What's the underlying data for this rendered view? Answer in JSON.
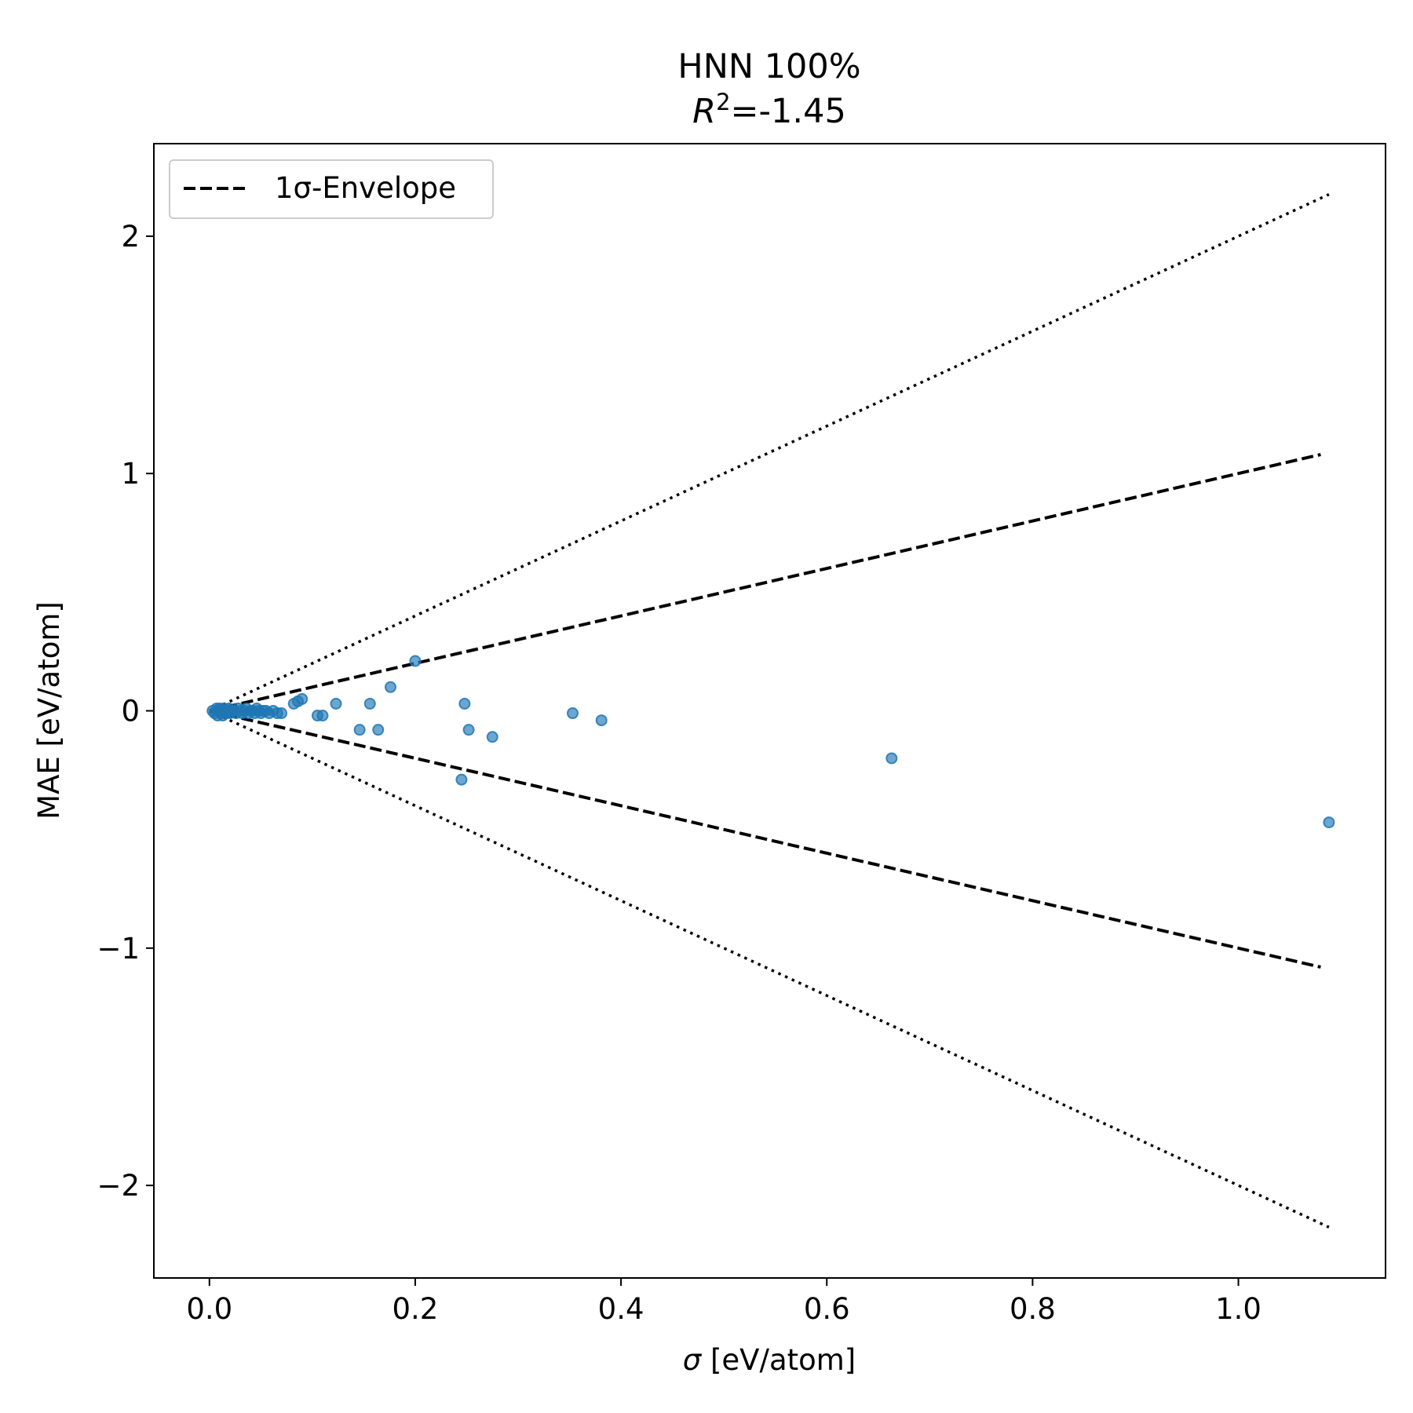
{
  "chart_data": {
    "type": "scatter",
    "title_line1": "HNN 100%",
    "title_r2_symbol": "R",
    "title_r2_exponent": "2",
    "title_r2_value": "=-1.45",
    "xlabel_symbol": "σ",
    "xlabel_units": " [eV/atom]",
    "ylabel": "MAE [eV/atom]",
    "xlim": [
      -0.054,
      1.143
    ],
    "ylim": [
      -2.39,
      2.39
    ],
    "xticks": [
      0.0,
      0.2,
      0.4,
      0.6,
      0.8,
      1.0
    ],
    "xtick_labels": [
      "0.0",
      "0.2",
      "0.4",
      "0.6",
      "0.8",
      "1.0"
    ],
    "yticks": [
      -2,
      -1,
      0,
      1,
      2
    ],
    "ytick_labels": [
      "−2",
      "−1",
      "0",
      "1",
      "2"
    ],
    "legend": {
      "position": "upper-left",
      "entries": [
        "1σ-Envelope"
      ]
    },
    "grid": false,
    "colors": {
      "points": "#1f77b4",
      "envelope": "#000000"
    },
    "envelope": {
      "sigma_1": {
        "style": "dashed",
        "slope": 1,
        "x_range": [
          0.0,
          1.08
        ]
      },
      "sigma_2": {
        "style": "dotted",
        "slope": 2,
        "x_range": [
          0.0,
          1.088
        ]
      }
    },
    "series": [
      {
        "x": [
          0.003,
          0.005,
          0.007,
          0.008,
          0.009,
          0.01,
          0.011,
          0.012,
          0.013,
          0.014,
          0.015,
          0.016,
          0.018,
          0.019,
          0.02,
          0.022,
          0.024,
          0.026,
          0.028,
          0.03,
          0.032,
          0.034,
          0.036,
          0.038,
          0.04,
          0.042,
          0.044,
          0.046,
          0.048,
          0.05,
          0.052,
          0.055,
          0.058,
          0.062,
          0.066,
          0.07,
          0.082,
          0.086,
          0.09,
          0.105,
          0.11,
          0.123,
          0.146,
          0.156,
          0.164,
          0.176,
          0.2,
          0.245,
          0.248,
          0.252,
          0.275,
          0.353,
          0.381,
          0.663,
          1.088
        ],
        "y": [
          0.0,
          -0.01,
          0.01,
          -0.02,
          0.0,
          0.01,
          -0.01,
          0.0,
          -0.02,
          0.01,
          0.0,
          -0.01,
          0.0,
          0.01,
          -0.01,
          0.0,
          0.0,
          -0.01,
          0.01,
          0.0,
          -0.01,
          0.0,
          0.01,
          -0.01,
          0.0,
          0.0,
          -0.01,
          0.01,
          0.0,
          -0.01,
          0.0,
          0.0,
          -0.01,
          0.0,
          -0.01,
          -0.01,
          0.03,
          0.04,
          0.05,
          -0.02,
          -0.02,
          0.03,
          -0.08,
          0.03,
          -0.08,
          0.1,
          0.21,
          -0.29,
          0.03,
          -0.08,
          -0.11,
          -0.01,
          -0.04,
          -0.2,
          -0.47
        ]
      }
    ]
  }
}
